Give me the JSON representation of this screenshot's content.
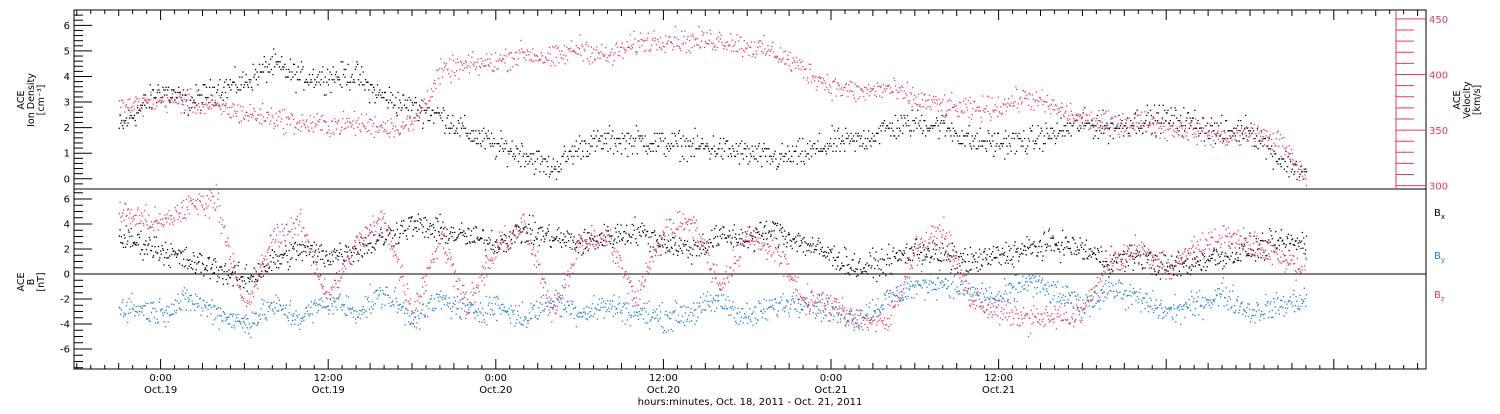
{
  "chart_data": [
    {
      "type": "scatter",
      "panel": "plasma",
      "ylabel_left": [
        "ACE",
        "Ion Density",
        "[cm⁻³]"
      ],
      "ylabel_right": [
        "ACE",
        "Velocity",
        "[km/s]"
      ],
      "ylim_left": [
        -0.4,
        6.6
      ],
      "ylim_right": [
        297,
        458
      ],
      "yticks_left": [
        0,
        1,
        2,
        3,
        4,
        5,
        6
      ],
      "yticks_right": [
        300,
        350,
        400,
        450
      ],
      "series": [
        {
          "axis": "left",
          "color": "#000000",
          "hours": [
            -3,
            0,
            2,
            4,
            6,
            8,
            9,
            10,
            12,
            14,
            15,
            16,
            17,
            18,
            20,
            22,
            24,
            26,
            28,
            30,
            32,
            34,
            36,
            38,
            40,
            42,
            44,
            46,
            48,
            50,
            52,
            54,
            56,
            58,
            60,
            62,
            64,
            66,
            68,
            70,
            72,
            74,
            76,
            78,
            80,
            82
          ],
          "values": [
            2.0,
            3.5,
            3.0,
            3.5,
            3.8,
            4.5,
            4.2,
            4.0,
            4.0,
            4.1,
            3.5,
            3.2,
            3.0,
            2.8,
            2.5,
            1.8,
            1.3,
            1.0,
            0.4,
            1.3,
            1.5,
            1.5,
            1.4,
            1.3,
            1.2,
            1.0,
            0.8,
            1.0,
            1.4,
            1.5,
            2.0,
            2.2,
            2.1,
            1.5,
            1.4,
            1.5,
            1.8,
            2.2,
            2.0,
            2.3,
            2.4,
            2.2,
            1.8,
            2.0,
            0.8,
            0.2
          ]
        },
        {
          "axis": "right",
          "color": "#e23a63",
          "hours": [
            -3,
            -2,
            0,
            2,
            4,
            6,
            8,
            10,
            12,
            14,
            16,
            18,
            20,
            21,
            22,
            24,
            26,
            28,
            30,
            32,
            34,
            36,
            38,
            40,
            42,
            44,
            46,
            48,
            50,
            52,
            54,
            56,
            58,
            60,
            62,
            64,
            66,
            68,
            70,
            72,
            74,
            76,
            78,
            80,
            82
          ],
          "values": [
            370,
            372,
            378,
            375,
            371,
            365,
            362,
            356,
            355,
            356,
            354,
            355,
            402,
            406,
            408,
            412,
            420,
            414,
            425,
            416,
            428,
            433,
            430,
            432,
            426,
            420,
            405,
            390,
            384,
            388,
            378,
            372,
            368,
            372,
            380,
            370,
            360,
            356,
            358,
            352,
            350,
            343,
            348,
            341,
            306
          ]
        }
      ]
    },
    {
      "type": "scatter",
      "panel": "magnetic-field",
      "ylabel_left": [
        "ACE",
        "B",
        "[nT]"
      ],
      "ylim": [
        -7.6,
        6.8
      ],
      "yticks": [
        -6,
        -4,
        -2,
        0,
        2,
        4,
        6
      ],
      "series": [
        {
          "name": "B_x",
          "legend": [
            "B",
            "x"
          ],
          "color": "#000000",
          "hours": [
            -3,
            0,
            2,
            4,
            6,
            8,
            10,
            12,
            14,
            16,
            18,
            20,
            22,
            24,
            26,
            28,
            30,
            32,
            34,
            36,
            38,
            40,
            42,
            44,
            46,
            48,
            50,
            52,
            54,
            56,
            58,
            60,
            62,
            64,
            66,
            68,
            70,
            72,
            74,
            76,
            78,
            80,
            82
          ],
          "values": [
            3.0,
            2.0,
            1.0,
            0.5,
            -0.5,
            1.0,
            2.0,
            1.5,
            2.0,
            3.0,
            4.0,
            3.5,
            3.0,
            2.5,
            3.5,
            3.0,
            2.5,
            3.0,
            3.5,
            2.5,
            2.0,
            3.0,
            3.0,
            3.5,
            2.5,
            1.5,
            0.5,
            1.0,
            2.0,
            1.5,
            1.0,
            1.5,
            2.0,
            2.5,
            2.0,
            1.0,
            1.5,
            0.5,
            1.0,
            1.5,
            2.0,
            2.5,
            2.5
          ]
        },
        {
          "name": "B_y",
          "legend": [
            "B",
            "y"
          ],
          "color": "#1f7fd6",
          "hours": [
            -3,
            0,
            2,
            4,
            6,
            8,
            10,
            12,
            14,
            16,
            18,
            20,
            22,
            24,
            26,
            28,
            30,
            32,
            34,
            36,
            38,
            40,
            42,
            44,
            46,
            48,
            50,
            52,
            54,
            56,
            58,
            60,
            62,
            64,
            66,
            68,
            70,
            72,
            74,
            76,
            78,
            80,
            82
          ],
          "values": [
            -2.5,
            -3.0,
            -2.0,
            -3.0,
            -4.0,
            -2.5,
            -3.5,
            -2.0,
            -3.0,
            -1.5,
            -3.5,
            -2.0,
            -3.0,
            -2.5,
            -3.5,
            -2.0,
            -3.0,
            -2.5,
            -3.0,
            -3.5,
            -3.0,
            -2.0,
            -3.5,
            -2.5,
            -2.0,
            -3.0,
            -3.5,
            -2.0,
            -1.0,
            -0.5,
            -1.5,
            -2.0,
            -0.5,
            -1.5,
            -2.5,
            -1.0,
            -2.0,
            -3.0,
            -2.5,
            -1.5,
            -3.0,
            -2.5,
            -2.0
          ]
        },
        {
          "name": "B_z",
          "legend": [
            "B",
            "z"
          ],
          "color": "#e23a63",
          "hours": [
            -3,
            0,
            2,
            4,
            6,
            8,
            10,
            12,
            14,
            16,
            18,
            20,
            22,
            24,
            26,
            28,
            30,
            32,
            34,
            36,
            38,
            40,
            42,
            44,
            46,
            48,
            50,
            52,
            54,
            56,
            58,
            60,
            62,
            64,
            66,
            68,
            70,
            72,
            74,
            76,
            78,
            80,
            82
          ],
          "values": [
            5.0,
            4.0,
            5.5,
            6.0,
            -3.0,
            3.0,
            4.0,
            -2.0,
            2.5,
            4.5,
            -3.0,
            3.0,
            -2.5,
            2.0,
            4.0,
            -3.0,
            2.5,
            3.0,
            -2.0,
            3.5,
            4.5,
            -1.0,
            3.0,
            2.0,
            -2.0,
            -2.5,
            -3.5,
            -4.0,
            2.0,
            3.5,
            -2.0,
            -3.0,
            -3.5,
            -3.5,
            -3.0,
            1.0,
            2.0,
            0.5,
            2.0,
            3.0,
            2.5,
            1.5,
            0.5
          ]
        }
      ]
    },
    {
      "type": "time-axis",
      "xlim_hours": [
        -6.2,
        90.6
      ],
      "ticks": [
        {
          "hour": 0,
          "time": "0:00",
          "date": "Oct.19"
        },
        {
          "hour": 12,
          "time": "12:00",
          "date": "Oct.19"
        },
        {
          "hour": 24,
          "time": "0:00",
          "date": "Oct.20"
        },
        {
          "hour": 36,
          "time": "12:00",
          "date": "Oct.20"
        },
        {
          "hour": 48,
          "time": "0:00",
          "date": "Oct.21"
        },
        {
          "hour": 60,
          "time": "12:00",
          "date": "Oct.21"
        }
      ],
      "minor_step_hours": 1,
      "xlabel": "hours:minutes, Oct. 18, 2011 - Oct. 21, 2011"
    }
  ]
}
